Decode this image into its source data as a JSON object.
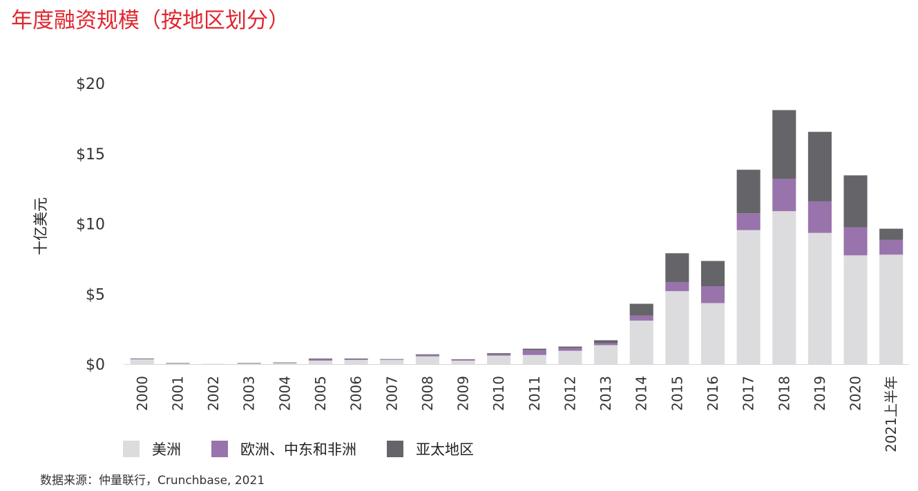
{
  "title": "年度融资规模（按地区划分）",
  "source": "数据来源：仲量联行，Crunchbase, 2021",
  "chart_data": {
    "type": "bar",
    "stacked": true,
    "title": "年度融资规模（按地区划分）",
    "ylabel": "十亿美元",
    "xlabel": "",
    "ylim": [
      0,
      20
    ],
    "yticks": [
      0,
      5,
      10,
      15,
      20
    ],
    "ytick_labels": [
      "$0",
      "$5",
      "$10",
      "$15",
      "$20"
    ],
    "grid": false,
    "legend_position": "bottom-left",
    "categories": [
      "2000",
      "2001",
      "2002",
      "2003",
      "2004",
      "2005",
      "2006",
      "2007",
      "2008",
      "2009",
      "2010",
      "2011",
      "2012",
      "2013",
      "2014",
      "2015",
      "2016",
      "2017",
      "2018",
      "2019",
      "2020",
      "2021上半年"
    ],
    "series": [
      {
        "name": "美洲",
        "color": "#dcdcdf",
        "values": [
          0.35,
          0.05,
          0.02,
          0.05,
          0.08,
          0.25,
          0.3,
          0.3,
          0.55,
          0.25,
          0.6,
          0.65,
          0.95,
          1.35,
          3.1,
          5.2,
          4.35,
          9.55,
          10.9,
          9.35,
          7.75,
          7.8
        ]
      },
      {
        "name": "欧洲、中东和非洲",
        "color": "#9973ab",
        "values": [
          0.02,
          0.01,
          0.0,
          0.01,
          0.02,
          0.1,
          0.05,
          0.03,
          0.1,
          0.08,
          0.1,
          0.35,
          0.2,
          0.15,
          0.35,
          0.65,
          1.2,
          1.2,
          2.3,
          2.25,
          2.0,
          1.05
        ]
      },
      {
        "name": "亚太地区",
        "color": "#646469",
        "values": [
          0.03,
          0.02,
          0.0,
          0.02,
          0.02,
          0.05,
          0.05,
          0.03,
          0.05,
          0.02,
          0.08,
          0.1,
          0.1,
          0.2,
          0.85,
          2.05,
          1.8,
          3.1,
          4.9,
          4.95,
          3.7,
          0.8
        ]
      }
    ]
  }
}
